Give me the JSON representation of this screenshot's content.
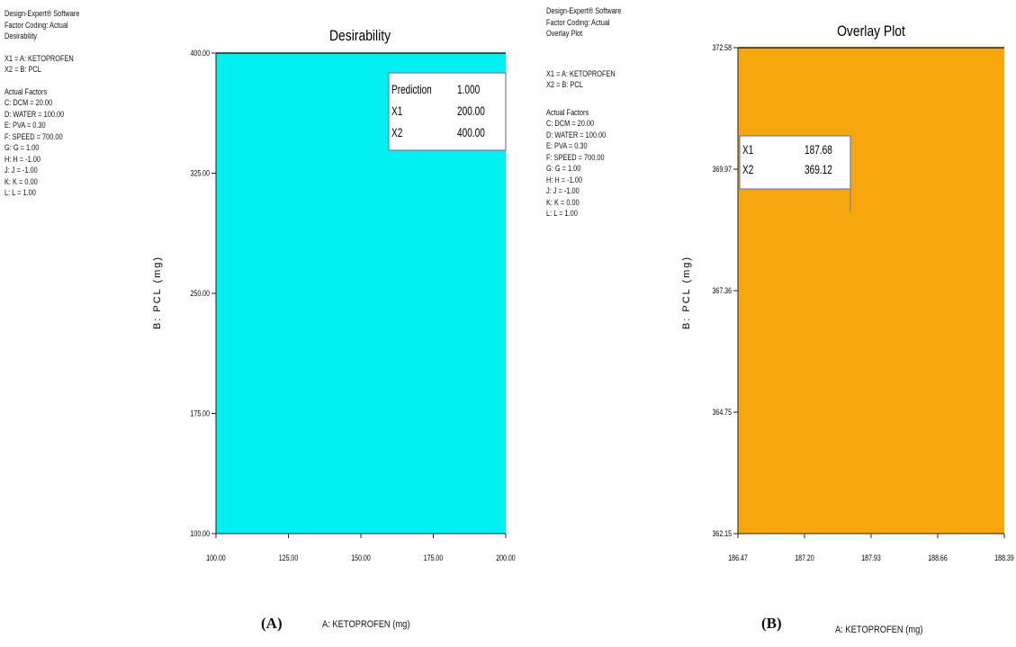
{
  "panels": [
    {
      "id": "A",
      "tag": "(A)",
      "side_info": {
        "header": [
          "Design-Expert® Software",
          "Factor Coding: Actual",
          "Desirability"
        ],
        "axes": [
          "X1 = A: KETOPROFEN",
          "X2 = B: PCL"
        ],
        "actual_title": "Actual Factors",
        "actual": [
          "C: DCM = 20.00",
          "D: WATER = 100.00",
          "E: PVA = 0.30",
          "F: SPEED = 700.00",
          "G: G = 1.00",
          "H: H = -1.00",
          "J: J = -1.00",
          "K: K = 0.00",
          "L: L = 1.00"
        ]
      },
      "chart_data": {
        "type": "heatmap",
        "title": "Desirability",
        "xlabel": "A: KETOPROFEN (mg)",
        "ylabel": "B: PCL (mg)",
        "xlim": [
          100,
          200
        ],
        "ylim": [
          100,
          400
        ],
        "xticks": [
          "100.00",
          "125.00",
          "150.00",
          "175.00",
          "200.00"
        ],
        "yticks": [
          "100.00",
          "175.00",
          "250.00",
          "325.00",
          "400.00"
        ],
        "fill_color": "#00f0f0",
        "flag": {
          "point": [
            200,
            400
          ],
          "rows": [
            {
              "label": "Prediction",
              "value": "1.000"
            },
            {
              "label": "X1",
              "value": "200.00"
            },
            {
              "label": "X2",
              "value": "400.00"
            }
          ]
        }
      }
    },
    {
      "id": "B",
      "tag": "(B)",
      "side_info": {
        "header": [
          "Design-Expert® Software",
          "Factor Coding: Actual",
          "Overlay Plot"
        ],
        "axes": [
          "X1 = A: KETOPROFEN",
          "X2 = B: PCL"
        ],
        "actual_title": "Actual Factors",
        "actual": [
          "C: DCM = 20.00",
          "D: WATER = 100.00",
          "E: PVA = 0.30",
          "F: SPEED = 700.00",
          "G: G = 1.00",
          "H: H = -1.00",
          "J: J = -1.00",
          "K: K = 0.00",
          "L: L = 1.00"
        ]
      },
      "chart_data": {
        "type": "heatmap",
        "title": "Overlay Plot",
        "xlabel": "A: KETOPROFEN (mg)",
        "ylabel": "B: PCL (mg)",
        "xlim": [
          186.47,
          188.39
        ],
        "ylim": [
          362.15,
          372.58
        ],
        "xticks": [
          "186.47",
          "187.20",
          "187.93",
          "188.66",
          "188.39"
        ],
        "yticks": [
          "362.15",
          "364.75",
          "367.36",
          "369.97",
          "372.58"
        ],
        "fill_color": "#f5a70d",
        "flag": {
          "point": [
            187.68,
            369.12
          ],
          "rows": [
            {
              "label": "X1",
              "value": "187.68"
            },
            {
              "label": "X2",
              "value": "369.12"
            }
          ]
        }
      }
    }
  ]
}
